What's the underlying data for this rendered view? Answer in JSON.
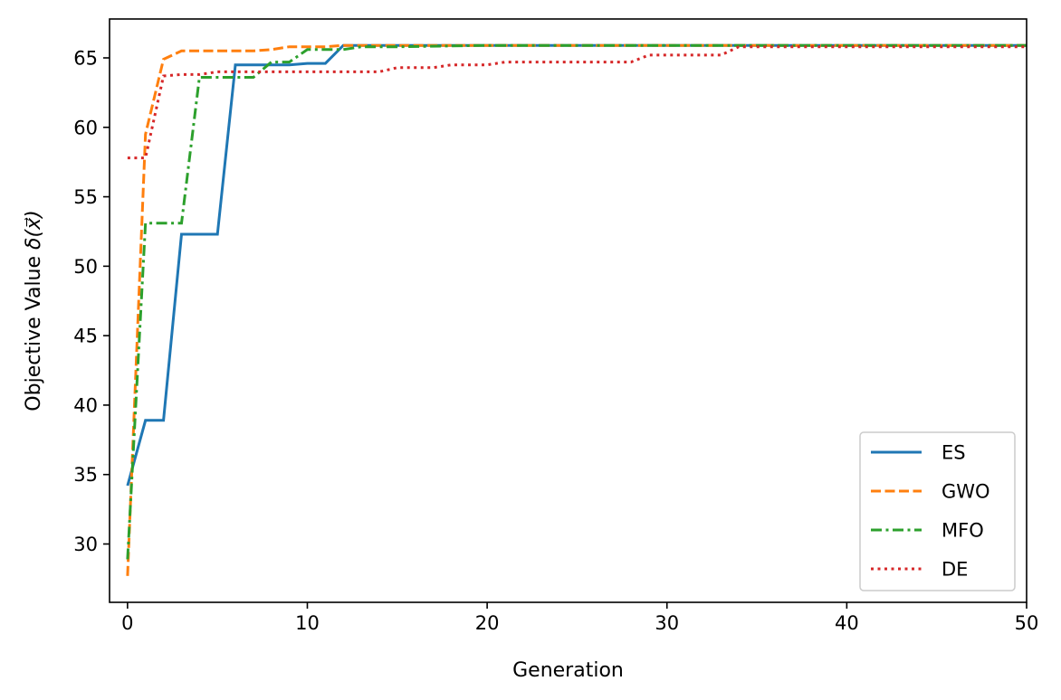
{
  "chart_data": {
    "type": "line",
    "xlabel": "Generation",
    "ylabel_prefix": "Objective Value ",
    "ylabel_math": "δ(x⃗)",
    "xlim": [
      -1,
      50
    ],
    "ylim": [
      25.8,
      67.8
    ],
    "xticks": [
      0,
      10,
      20,
      30,
      40,
      50
    ],
    "yticks": [
      30,
      35,
      40,
      45,
      50,
      55,
      60,
      65
    ],
    "grid": false,
    "legend_position": "lower-right",
    "series": [
      {
        "name": "ES",
        "color": "#1f77b4",
        "dash": "solid",
        "x": [
          0,
          1,
          2,
          3,
          4,
          5,
          6,
          7,
          8,
          9,
          10,
          11,
          12,
          13,
          14,
          15,
          20,
          30,
          40,
          50
        ],
        "y": [
          34.2,
          38.9,
          38.9,
          52.3,
          52.3,
          52.3,
          64.5,
          64.5,
          64.5,
          64.5,
          64.6,
          64.6,
          65.9,
          65.9,
          65.9,
          65.9,
          65.9,
          65.9,
          65.9,
          65.9
        ]
      },
      {
        "name": "GWO",
        "color": "#ff7f0e",
        "dash": "dashed",
        "x": [
          0,
          1,
          2,
          3,
          4,
          5,
          6,
          7,
          8,
          9,
          10,
          11,
          12,
          15,
          20,
          30,
          40,
          50
        ],
        "y": [
          27.7,
          59.5,
          64.9,
          65.5,
          65.5,
          65.5,
          65.5,
          65.5,
          65.6,
          65.8,
          65.8,
          65.8,
          65.9,
          65.9,
          65.9,
          65.9,
          65.9,
          65.9
        ]
      },
      {
        "name": "MFO",
        "color": "#2ca02c",
        "dash": "dashdot",
        "x": [
          0,
          1,
          2,
          3,
          4,
          5,
          6,
          7,
          8,
          9,
          10,
          11,
          12,
          13,
          14,
          15,
          20,
          30,
          40,
          50
        ],
        "y": [
          28.9,
          53.1,
          53.1,
          53.1,
          63.6,
          63.6,
          63.6,
          63.6,
          64.7,
          64.7,
          65.6,
          65.6,
          65.6,
          65.8,
          65.8,
          65.8,
          65.9,
          65.9,
          65.9,
          65.9
        ]
      },
      {
        "name": "DE",
        "color": "#d62728",
        "dash": "dotted",
        "x": [
          0,
          1,
          2,
          3,
          4,
          5,
          6,
          7,
          8,
          9,
          10,
          11,
          12,
          13,
          14,
          15,
          16,
          17,
          18,
          19,
          20,
          21,
          22,
          23,
          24,
          25,
          26,
          27,
          28,
          29,
          30,
          31,
          32,
          33,
          34,
          35,
          40,
          45,
          50
        ],
        "y": [
          57.8,
          57.8,
          63.7,
          63.8,
          63.8,
          64.0,
          64.0,
          64.0,
          64.0,
          64.0,
          64.0,
          64.0,
          64.0,
          64.0,
          64.0,
          64.3,
          64.3,
          64.3,
          64.5,
          64.5,
          64.5,
          64.7,
          64.7,
          64.7,
          64.7,
          64.7,
          64.7,
          64.7,
          64.7,
          65.2,
          65.2,
          65.2,
          65.2,
          65.2,
          65.8,
          65.8,
          65.8,
          65.8,
          65.8
        ]
      }
    ]
  }
}
